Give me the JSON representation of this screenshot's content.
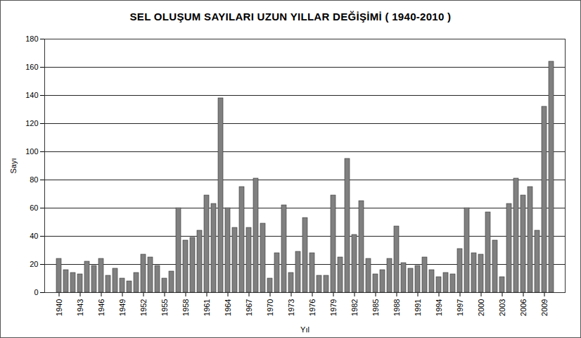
{
  "chart_data": {
    "type": "bar",
    "title": "SEL OLUŞUM SAYILARI UZUN YILLAR DEĞİŞİMİ ( 1940-2010 )",
    "x_label": "Yıl",
    "y_label": "Sayı",
    "categories": [
      "1940",
      null,
      null,
      "1943",
      null,
      null,
      "1946",
      null,
      null,
      "1949",
      null,
      null,
      "1952",
      null,
      null,
      "1955",
      null,
      null,
      "1958",
      null,
      null,
      "1961",
      null,
      null,
      "1964",
      null,
      null,
      "1967",
      null,
      null,
      "1970",
      null,
      null,
      "1973",
      null,
      null,
      "1976",
      null,
      null,
      "1979",
      null,
      null,
      "1982",
      null,
      null,
      "1985",
      null,
      null,
      "1988",
      null,
      null,
      "1991",
      null,
      null,
      "1994",
      null,
      null,
      "1997",
      null,
      null,
      "2000",
      null,
      null,
      "2003",
      null,
      null,
      "2006",
      null,
      null,
      "2009",
      null
    ],
    "values": [
      24,
      16,
      14,
      13,
      22,
      19,
      24,
      12,
      17,
      10,
      8,
      14,
      27,
      25,
      19,
      10,
      15,
      60,
      37,
      39,
      44,
      69,
      63,
      138,
      60,
      46,
      75,
      46,
      81,
      49,
      10,
      28,
      62,
      14,
      29,
      53,
      28,
      12,
      12,
      69,
      25,
      95,
      41,
      65,
      24,
      13,
      16,
      24,
      47,
      21,
      17,
      19,
      25,
      16,
      11,
      14,
      13,
      31,
      60,
      28,
      27,
      57,
      37,
      11,
      63,
      81,
      69,
      75,
      44,
      132,
      164
    ],
    "color": "#808080",
    "ylim": [
      0,
      180
    ],
    "yticks": [
      0,
      20,
      40,
      60,
      80,
      100,
      120,
      140,
      160,
      180
    ],
    "grid": true
  }
}
